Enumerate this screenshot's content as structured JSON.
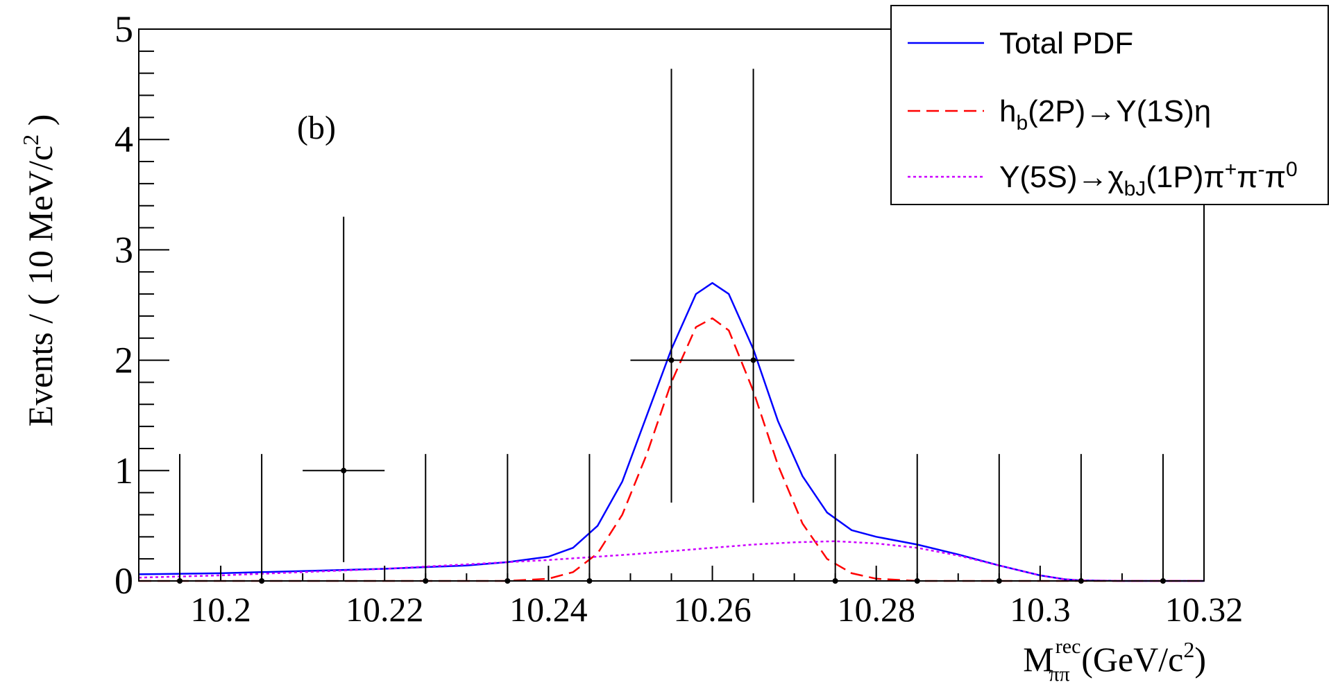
{
  "chart_data": {
    "type": "line",
    "panel_label": "(b)",
    "ylabel": "Events / ( 10 MeV/c",
    "ylabel_sup": "2",
    "ylabel_close": " )",
    "xlabel_main": "M",
    "xlabel_sup": "rec",
    "xlabel_sub": "ππ",
    "xlabel_units": " (GeV/c",
    "xlabel_units_sup": "2",
    "xlabel_units_close": ")",
    "xlim": [
      10.19,
      10.32
    ],
    "ylim": [
      0,
      5
    ],
    "x_ticks": [
      10.2,
      10.22,
      10.24,
      10.26,
      10.28,
      10.3,
      10.32
    ],
    "x_tick_labels": [
      "10.2",
      "10.22",
      "10.24",
      "10.26",
      "10.28",
      "10.3",
      "10.32"
    ],
    "y_ticks": [
      0,
      1,
      2,
      3,
      4,
      5
    ],
    "y_tick_labels": [
      "0",
      "1",
      "2",
      "3",
      "4",
      "5"
    ],
    "bin_width": 0.01,
    "data_points": {
      "x": [
        10.195,
        10.205,
        10.215,
        10.225,
        10.235,
        10.245,
        10.255,
        10.265,
        10.275,
        10.285,
        10.295,
        10.305,
        10.315
      ],
      "y": [
        0,
        0,
        1,
        0,
        0,
        0,
        2,
        2,
        0,
        0,
        0,
        0,
        0
      ],
      "err_low": [
        0,
        0,
        0.83,
        0,
        0,
        0,
        1.29,
        1.29,
        0,
        0,
        0,
        0,
        0
      ],
      "err_high": [
        1.15,
        1.15,
        2.3,
        1.15,
        1.15,
        1.15,
        2.64,
        2.64,
        1.15,
        1.15,
        1.15,
        1.15,
        1.15
      ]
    },
    "series": [
      {
        "name": "Total PDF",
        "color": "#0000ff",
        "dash": "solid",
        "x": [
          10.19,
          10.2,
          10.21,
          10.22,
          10.23,
          10.235,
          10.24,
          10.243,
          10.246,
          10.249,
          10.252,
          10.255,
          10.258,
          10.26,
          10.262,
          10.265,
          10.268,
          10.271,
          10.274,
          10.277,
          10.28,
          10.285,
          10.29,
          10.295,
          10.3,
          10.303,
          10.305,
          10.31,
          10.32
        ],
        "y": [
          0.06,
          0.07,
          0.09,
          0.11,
          0.14,
          0.17,
          0.22,
          0.3,
          0.5,
          0.9,
          1.5,
          2.1,
          2.6,
          2.7,
          2.6,
          2.1,
          1.45,
          0.95,
          0.62,
          0.46,
          0.4,
          0.33,
          0.24,
          0.14,
          0.05,
          0.015,
          0.005,
          0,
          0
        ]
      },
      {
        "name": "h_b(2P)→Υ(1S)η",
        "color": "#ff0000",
        "dash": "dashed",
        "x": [
          10.19,
          10.235,
          10.24,
          10.243,
          10.246,
          10.249,
          10.252,
          10.255,
          10.258,
          10.26,
          10.262,
          10.265,
          10.268,
          10.271,
          10.274,
          10.277,
          10.28,
          10.285,
          10.32
        ],
        "y": [
          0,
          0,
          0.02,
          0.08,
          0.25,
          0.6,
          1.15,
          1.8,
          2.3,
          2.38,
          2.27,
          1.72,
          1.05,
          0.52,
          0.2,
          0.07,
          0.02,
          0,
          0
        ]
      },
      {
        "name": "Υ(5S)→χ_bJ(1P)π⁺π⁻π⁰",
        "color": "#cc00ff",
        "dash": "dotted",
        "x": [
          10.19,
          10.2,
          10.21,
          10.22,
          10.23,
          10.24,
          10.25,
          10.26,
          10.265,
          10.27,
          10.275,
          10.28,
          10.285,
          10.29,
          10.295,
          10.3,
          10.303,
          10.305,
          10.31,
          10.32
        ],
        "y": [
          0.03,
          0.05,
          0.08,
          0.11,
          0.15,
          0.19,
          0.24,
          0.3,
          0.33,
          0.35,
          0.36,
          0.34,
          0.3,
          0.23,
          0.14,
          0.05,
          0.015,
          0.005,
          0,
          0
        ]
      }
    ],
    "legend": {
      "position": "top-right",
      "entries": [
        {
          "text": "Total PDF",
          "parts": [
            {
              "t": "Total PDF",
              "s": "n"
            }
          ]
        },
        {
          "text": "h_b(2P)→Υ(1S)η",
          "parts": [
            {
              "t": "h",
              "s": "n"
            },
            {
              "t": "b",
              "s": "sub"
            },
            {
              "t": "(2P)→Υ(1S)η",
              "s": "n"
            }
          ]
        },
        {
          "text": "Υ(5S)→χ_bJ(1P)π⁺π⁻π⁰",
          "parts": [
            {
              "t": "Υ(5S)→χ",
              "s": "n"
            },
            {
              "t": "bJ",
              "s": "sub"
            },
            {
              "t": "(1P)π",
              "s": "n"
            },
            {
              "t": "+",
              "s": "sup"
            },
            {
              "t": "π",
              "s": "n"
            },
            {
              "t": "-",
              "s": "sup"
            },
            {
              "t": "π",
              "s": "n"
            },
            {
              "t": "0",
              "s": "sup"
            }
          ]
        }
      ]
    }
  }
}
